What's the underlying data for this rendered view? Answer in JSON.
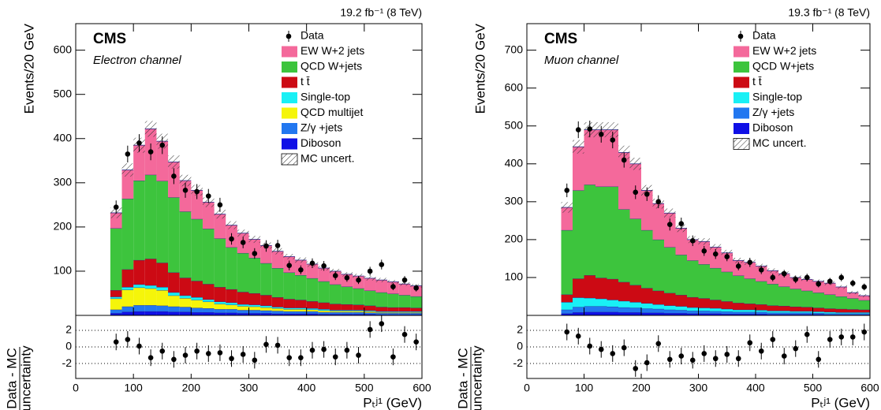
{
  "chart_data": [
    {
      "type": "stacked-histogram",
      "lumi_label": "19.2 fb⁻¹ (8 TeV)",
      "experiment": "CMS",
      "channel": "Electron channel",
      "ylabel": "Events/20 GeV",
      "xlim": [
        0,
        600
      ],
      "ylim": [
        0,
        660
      ],
      "yticks": [
        100,
        200,
        300,
        400,
        500,
        600
      ],
      "bins": [
        60,
        80,
        100,
        120,
        140,
        160,
        180,
        200,
        220,
        240,
        260,
        280,
        300,
        320,
        340,
        360,
        380,
        400,
        420,
        440,
        460,
        480,
        500,
        520,
        540,
        560,
        580,
        600
      ],
      "data": {
        "name": "Data",
        "color": "#000000",
        "values": [
          245,
          365,
          390,
          370,
          385,
          315,
          283,
          280,
          270,
          250,
          173,
          165,
          140,
          157,
          158,
          113,
          103,
          118,
          112,
          90,
          85,
          80,
          100,
          115,
          65,
          80,
          62
        ],
        "errors": [
          15,
          19,
          20,
          19,
          20,
          18,
          17,
          17,
          16,
          16,
          13,
          13,
          12,
          13,
          13,
          11,
          10,
          11,
          11,
          10,
          9,
          9,
          10,
          11,
          8,
          9,
          8
        ]
      },
      "series": [
        {
          "name": "EW W+2 jets",
          "color": "#f4699b",
          "values": [
            35,
            65,
            80,
            104,
            90,
            80,
            70,
            65,
            60,
            55,
            50,
            45,
            42,
            40,
            38,
            36,
            34,
            32,
            30,
            30,
            28,
            28,
            28,
            28,
            27,
            25,
            24
          ]
        },
        {
          "name": "QCD W+jets",
          "color": "#3dc43d",
          "values": [
            140,
            160,
            180,
            190,
            185,
            170,
            150,
            140,
            125,
            110,
            95,
            88,
            80,
            72,
            66,
            60,
            56,
            52,
            48,
            44,
            40,
            37,
            34,
            33,
            31,
            28,
            26
          ]
        },
        {
          "name": "t t̄",
          "color": "#cc0a14",
          "values": [
            15,
            40,
            55,
            60,
            55,
            45,
            40,
            37,
            35,
            33,
            30,
            28,
            26,
            24,
            22,
            20,
            18,
            16,
            15,
            14,
            13,
            12,
            11,
            10,
            9,
            9,
            8
          ]
        },
        {
          "name": "Single-top",
          "color": "#19f0f5",
          "values": [
            4,
            6,
            7,
            7,
            7,
            7,
            6,
            6,
            5,
            5,
            5,
            4,
            4,
            4,
            3,
            3,
            3,
            3,
            3,
            2,
            2,
            2,
            2,
            2,
            2,
            2,
            2
          ]
        },
        {
          "name": "QCD multijet",
          "color": "#f5f50a",
          "values": [
            25,
            38,
            40,
            38,
            35,
            25,
            20,
            18,
            15,
            12,
            10,
            9,
            8,
            7,
            6,
            5,
            5,
            4,
            4,
            3,
            3,
            3,
            3,
            2,
            2,
            2,
            2
          ]
        },
        {
          "name": "Z/γ +jets",
          "color": "#2277f0",
          "values": [
            8,
            12,
            14,
            14,
            13,
            12,
            11,
            10,
            9,
            8,
            8,
            7,
            7,
            6,
            6,
            5,
            5,
            5,
            4,
            4,
            4,
            4,
            3,
            3,
            3,
            3,
            3
          ]
        },
        {
          "name": "Diboson",
          "color": "#1010e6",
          "values": [
            5,
            8,
            9,
            9,
            9,
            8,
            8,
            7,
            7,
            6,
            6,
            5,
            5,
            5,
            4,
            4,
            4,
            4,
            3,
            3,
            3,
            3,
            3,
            2,
            2,
            2,
            2
          ]
        }
      ],
      "uncertainty": {
        "name": "MC uncert.",
        "values": [
          12,
          15,
          17,
          18,
          17,
          15,
          13,
          12,
          11,
          10,
          9,
          8,
          8,
          7,
          7,
          6,
          6,
          6,
          5,
          5,
          5,
          5,
          5,
          5,
          4,
          4,
          4
        ]
      },
      "ratio": {
        "type": "scatter",
        "ylabel": [
          "Data - MC",
          "uncertainty"
        ],
        "xlabel": "Pₜʲ¹ (GeV)",
        "xlim": [
          0,
          600
        ],
        "xticks": [
          0,
          100,
          200,
          300,
          400,
          500,
          600
        ],
        "ylim": [
          -3.8,
          3.8
        ],
        "yticks": [
          -2,
          0,
          2
        ],
        "grid": true,
        "x": [
          70,
          90,
          110,
          130,
          150,
          170,
          190,
          210,
          230,
          250,
          270,
          290,
          310,
          330,
          350,
          370,
          390,
          410,
          430,
          450,
          470,
          490,
          510,
          530,
          550,
          570,
          590
        ],
        "values": [
          0.6,
          0.9,
          0.1,
          -1.3,
          -0.5,
          -1.5,
          -1.0,
          -0.5,
          -0.8,
          -0.7,
          -1.4,
          -0.9,
          -1.6,
          0.3,
          0.2,
          -1.3,
          -1.3,
          -0.4,
          -0.3,
          -1.2,
          -0.4,
          -1.0,
          2.1,
          2.8,
          -1.2,
          1.5,
          0.6
        ],
        "errors": [
          1,
          1,
          1,
          1,
          1,
          1,
          1,
          1,
          1,
          1,
          1,
          1,
          1,
          1,
          1,
          1,
          1,
          1,
          1,
          1,
          1,
          1,
          1,
          1,
          1,
          1,
          1
        ]
      }
    },
    {
      "type": "stacked-histogram",
      "lumi_label": "19.3 fb⁻¹ (8 TeV)",
      "experiment": "CMS",
      "channel": "Muon channel",
      "ylabel": "Events/20 GeV",
      "xlim": [
        0,
        600
      ],
      "ylim": [
        0,
        770
      ],
      "yticks": [
        100,
        200,
        300,
        400,
        500,
        600,
        700
      ],
      "bins": [
        60,
        80,
        100,
        120,
        140,
        160,
        180,
        200,
        220,
        240,
        260,
        280,
        300,
        320,
        340,
        360,
        380,
        400,
        420,
        440,
        460,
        480,
        500,
        520,
        540,
        560,
        580,
        600
      ],
      "data": {
        "name": "Data",
        "color": "#000000",
        "values": [
          330,
          490,
          492,
          478,
          463,
          410,
          325,
          320,
          300,
          240,
          242,
          197,
          170,
          162,
          155,
          130,
          140,
          120,
          100,
          110,
          95,
          100,
          83,
          90,
          100,
          85,
          75
        ],
        "errors": [
          18,
          22,
          22,
          22,
          22,
          20,
          18,
          18,
          17,
          16,
          16,
          14,
          13,
          13,
          12,
          11,
          12,
          11,
          10,
          10,
          10,
          10,
          9,
          9,
          10,
          9,
          9
        ]
      },
      "series": [
        {
          "name": "EW W+2 jets",
          "color": "#f4699b",
          "values": [
            60,
            115,
            145,
            150,
            150,
            150,
            145,
            105,
            95,
            90,
            70,
            55,
            60,
            55,
            50,
            40,
            43,
            40,
            35,
            34,
            30,
            30,
            30,
            30,
            25,
            15,
            12
          ]
        },
        {
          "name": "QCD W+jets",
          "color": "#3dc43d",
          "values": [
            170,
            233,
            239,
            241,
            244,
            192,
            175,
            153,
            135,
            121,
            106,
            97,
            90,
            84,
            78,
            72,
            66,
            61,
            57,
            51,
            47,
            43,
            40,
            37,
            33,
            29,
            25
          ]
        },
        {
          "name": "t t̄",
          "color": "#cc0a14",
          "values": [
            20,
            50,
            60,
            55,
            55,
            50,
            45,
            40,
            36,
            33,
            30,
            27,
            25,
            22,
            20,
            18,
            16,
            15,
            14,
            13,
            12,
            11,
            10,
            9,
            9,
            8,
            7
          ]
        },
        {
          "name": "Single-top",
          "color": "#19f0f5",
          "values": [
            20,
            25,
            22,
            20,
            18,
            17,
            15,
            14,
            12,
            11,
            10,
            9,
            8,
            8,
            7,
            6,
            6,
            5,
            5,
            5,
            4,
            4,
            4,
            4,
            3,
            3,
            3
          ]
        },
        {
          "name": "Z/γ +jets",
          "color": "#2277f0",
          "values": [
            10,
            14,
            15,
            15,
            14,
            13,
            12,
            11,
            10,
            9,
            8,
            7,
            7,
            6,
            6,
            5,
            5,
            5,
            4,
            4,
            4,
            4,
            3,
            3,
            3,
            3,
            3
          ]
        },
        {
          "name": "Diboson",
          "color": "#1010e6",
          "values": [
            5,
            8,
            9,
            9,
            9,
            8,
            8,
            7,
            7,
            6,
            6,
            5,
            5,
            5,
            4,
            4,
            4,
            4,
            3,
            3,
            3,
            3,
            3,
            2,
            2,
            2,
            2
          ]
        }
      ],
      "uncertainty": {
        "name": "MC uncert.",
        "values": [
          14,
          18,
          20,
          20,
          20,
          18,
          16,
          14,
          13,
          12,
          10,
          9,
          9,
          8,
          8,
          7,
          7,
          6,
          6,
          6,
          5,
          5,
          5,
          5,
          5,
          4,
          4
        ]
      },
      "ratio": {
        "type": "scatter",
        "ylabel": [
          "Data - MC",
          "uncertainty"
        ],
        "xlabel": "Pₜʲ¹ (GeV)",
        "xlim": [
          0,
          600
        ],
        "xticks": [
          0,
          100,
          200,
          300,
          400,
          500,
          600
        ],
        "ylim": [
          -3.8,
          3.8
        ],
        "yticks": [
          -2,
          0,
          2
        ],
        "grid": true,
        "x": [
          70,
          90,
          110,
          130,
          150,
          170,
          190,
          210,
          230,
          250,
          270,
          290,
          310,
          330,
          350,
          370,
          390,
          410,
          430,
          450,
          470,
          490,
          510,
          530,
          550,
          570,
          590
        ],
        "values": [
          1.8,
          1.3,
          0.1,
          -0.3,
          -0.8,
          -0.1,
          -2.6,
          -1.9,
          0.4,
          -1.5,
          -1.1,
          -1.6,
          -0.8,
          -1.4,
          -0.9,
          -1.4,
          0.5,
          -0.5,
          0.9,
          -1.1,
          -0.2,
          1.5,
          -1.5,
          0.9,
          1.2,
          1.2,
          1.8
        ],
        "errors": [
          1,
          1,
          1,
          1,
          1,
          1,
          1,
          1,
          1,
          1,
          1,
          1,
          1,
          1,
          1,
          1,
          1,
          1,
          1,
          1,
          1,
          1,
          1,
          1,
          1,
          1,
          1
        ]
      }
    }
  ]
}
